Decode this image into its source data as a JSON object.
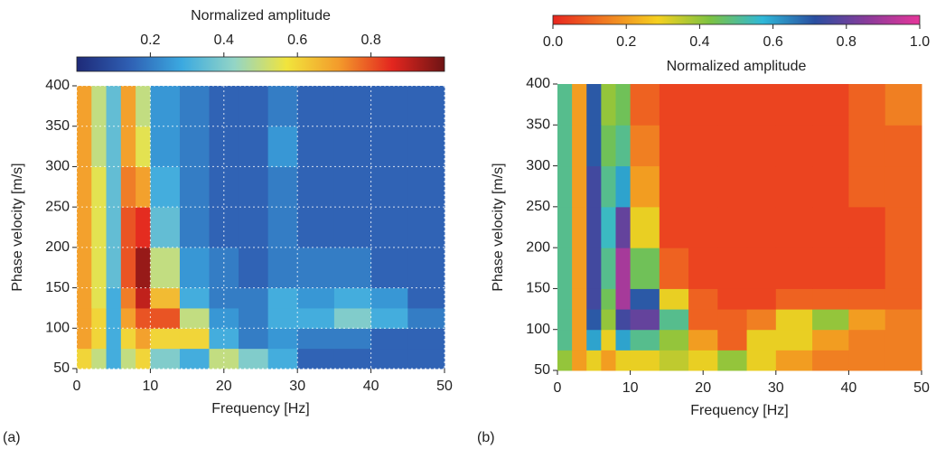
{
  "chart_data": [
    {
      "type": "heatmap",
      "title": "(a)",
      "xlabel": "Frequency [Hz]",
      "ylabel": "Phase velocity [m/s]",
      "colorbar_label": "Normalized amplitude",
      "x_edges": [
        0,
        2,
        4,
        6,
        8,
        10,
        14,
        18,
        22,
        26,
        30,
        35,
        40,
        45,
        50
      ],
      "y_edges": [
        50,
        75,
        100,
        125,
        150,
        200,
        250,
        300,
        350,
        400
      ],
      "values": [
        [
          0.6,
          0.5,
          0.3,
          0.5,
          0.6,
          0.4,
          0.3,
          0.5,
          0.4,
          0.3,
          0.15,
          0.15,
          0.15,
          0.15
        ],
        [
          0.7,
          0.6,
          0.3,
          0.6,
          0.7,
          0.6,
          0.6,
          0.3,
          0.2,
          0.25,
          0.2,
          0.2,
          0.15,
          0.15
        ],
        [
          0.7,
          0.6,
          0.3,
          0.7,
          0.8,
          0.8,
          0.5,
          0.25,
          0.2,
          0.3,
          0.3,
          0.4,
          0.3,
          0.2
        ],
        [
          0.7,
          0.55,
          0.3,
          0.75,
          0.9,
          0.65,
          0.3,
          0.2,
          0.2,
          0.3,
          0.25,
          0.3,
          0.25,
          0.15
        ],
        [
          0.7,
          0.55,
          0.35,
          0.8,
          0.95,
          0.5,
          0.25,
          0.2,
          0.15,
          0.2,
          0.2,
          0.2,
          0.15,
          0.15
        ],
        [
          0.7,
          0.55,
          0.35,
          0.8,
          0.85,
          0.35,
          0.2,
          0.15,
          0.15,
          0.2,
          0.15,
          0.15,
          0.15,
          0.15
        ],
        [
          0.7,
          0.55,
          0.35,
          0.75,
          0.7,
          0.3,
          0.2,
          0.15,
          0.15,
          0.2,
          0.15,
          0.15,
          0.15,
          0.15
        ],
        [
          0.7,
          0.5,
          0.35,
          0.7,
          0.55,
          0.25,
          0.2,
          0.15,
          0.15,
          0.25,
          0.15,
          0.15,
          0.15,
          0.15
        ],
        [
          0.7,
          0.5,
          0.35,
          0.7,
          0.5,
          0.25,
          0.2,
          0.15,
          0.15,
          0.2,
          0.15,
          0.15,
          0.15,
          0.15
        ]
      ],
      "xlim": [
        0,
        50
      ],
      "ylim": [
        50,
        400
      ],
      "xticks": [
        0,
        10,
        20,
        30,
        40,
        50
      ],
      "yticks": [
        50,
        100,
        150,
        200,
        250,
        300,
        350,
        400
      ],
      "clim": [
        0,
        1
      ],
      "cticks": [
        0.2,
        0.4,
        0.6,
        0.8
      ],
      "colormap": [
        "#1e2a78",
        "#2f5fb3",
        "#3ba9e0",
        "#93d5c6",
        "#f1e43c",
        "#f39a2b",
        "#e3261f",
        "#6e1414"
      ],
      "grid": true
    },
    {
      "type": "heatmap",
      "title": "(b)",
      "xlabel": "Frequency [Hz]",
      "ylabel": "Phase velocity [m/s]",
      "colorbar_label": "Normalized amplitude",
      "x_edges": [
        0,
        2,
        4,
        6,
        8,
        10,
        14,
        18,
        22,
        26,
        30,
        35,
        40,
        45,
        50
      ],
      "y_edges": [
        50,
        75,
        100,
        125,
        150,
        200,
        250,
        300,
        350,
        400
      ],
      "values": [
        [
          0.4,
          0.2,
          0.3,
          0.2,
          0.3,
          0.3,
          0.35,
          0.3,
          0.4,
          0.3,
          0.2,
          0.15,
          0.15,
          0.15
        ],
        [
          0.5,
          0.2,
          0.6,
          0.3,
          0.6,
          0.5,
          0.4,
          0.2,
          0.1,
          0.3,
          0.3,
          0.2,
          0.15,
          0.15
        ],
        [
          0.5,
          0.2,
          0.7,
          0.4,
          0.75,
          0.8,
          0.5,
          0.1,
          0.1,
          0.15,
          0.3,
          0.4,
          0.2,
          0.15
        ],
        [
          0.5,
          0.2,
          0.75,
          0.45,
          0.9,
          0.7,
          0.3,
          0.1,
          0.05,
          0.05,
          0.1,
          0.1,
          0.1,
          0.1
        ],
        [
          0.5,
          0.2,
          0.75,
          0.5,
          0.9,
          0.45,
          0.1,
          0.05,
          0.05,
          0.05,
          0.05,
          0.05,
          0.05,
          0.1
        ],
        [
          0.5,
          0.2,
          0.75,
          0.55,
          0.8,
          0.3,
          0.05,
          0.05,
          0.05,
          0.05,
          0.05,
          0.05,
          0.05,
          0.1
        ],
        [
          0.5,
          0.2,
          0.75,
          0.5,
          0.6,
          0.2,
          0.05,
          0.05,
          0.05,
          0.05,
          0.05,
          0.05,
          0.1,
          0.1
        ],
        [
          0.5,
          0.2,
          0.7,
          0.45,
          0.5,
          0.15,
          0.05,
          0.05,
          0.05,
          0.05,
          0.05,
          0.05,
          0.1,
          0.1
        ],
        [
          0.5,
          0.2,
          0.7,
          0.4,
          0.45,
          0.1,
          0.05,
          0.05,
          0.05,
          0.05,
          0.05,
          0.05,
          0.1,
          0.15
        ]
      ],
      "xlim": [
        0,
        50
      ],
      "ylim": [
        50,
        400
      ],
      "xticks": [
        0,
        10,
        20,
        30,
        40,
        50
      ],
      "yticks": [
        50,
        100,
        150,
        200,
        250,
        300,
        350,
        400
      ],
      "clim": [
        0,
        1
      ],
      "cticks": [
        {
          "value": 0,
          "label": "0.0"
        },
        0.2,
        0.4,
        0.6,
        0.8,
        {
          "value": 1,
          "label": "1.0"
        }
      ],
      "colormap": [
        "#e8261f",
        "#f07b22",
        "#f5d020",
        "#7cc242",
        "#2fb8d8",
        "#2a4ea0",
        "#8a3b9a",
        "#e6369a"
      ],
      "grid": false
    }
  ]
}
